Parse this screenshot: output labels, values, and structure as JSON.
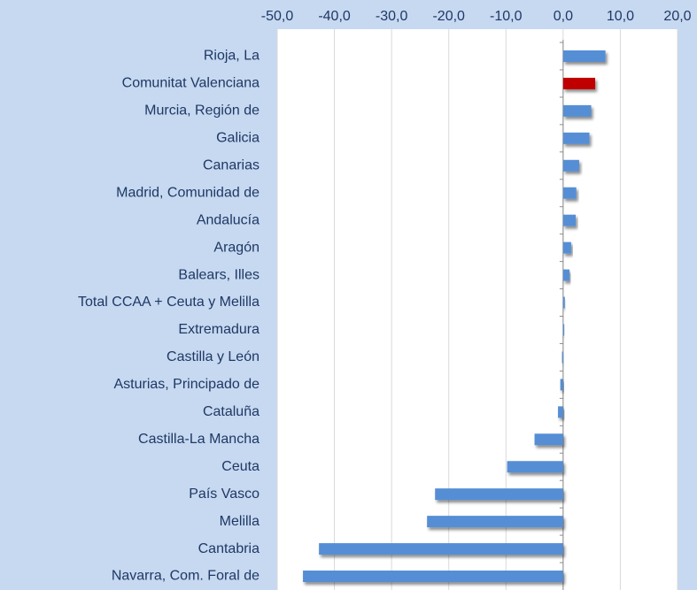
{
  "chart_data": {
    "type": "barh",
    "categories": [
      "Rioja, La",
      "Comunitat Valenciana",
      "Murcia, Región de",
      "Galicia",
      "Canarias",
      "Madrid, Comunidad de ",
      "Andalucía",
      "Aragón",
      "Balears, Illes",
      "Total CCAA + Ceuta y Melilla",
      "Extremadura",
      "Castilla y León",
      "Asturias, Principado de",
      "Cataluña",
      "Castilla-La Mancha",
      "Ceuta",
      "País Vasco",
      "Melilla",
      "Cantabria",
      "Navarra, Com. Foral de"
    ],
    "values": [
      7.4,
      5.6,
      4.9,
      4.6,
      2.8,
      2.3,
      2.2,
      1.4,
      1.1,
      0.3,
      0.2,
      -0.2,
      -0.5,
      -0.9,
      -5.0,
      -9.8,
      -22.4,
      -23.8,
      -42.7,
      -45.5
    ],
    "colors": [
      "#558ed5",
      "#c00000",
      "#558ed5",
      "#558ed5",
      "#558ed5",
      "#558ed5",
      "#558ed5",
      "#558ed5",
      "#558ed5",
      "#558ed5",
      "#558ed5",
      "#558ed5",
      "#558ed5",
      "#558ed5",
      "#558ed5",
      "#558ed5",
      "#558ed5",
      "#558ed5",
      "#558ed5",
      "#558ed5"
    ],
    "xlim": [
      -50,
      20
    ],
    "xticks": [
      {
        "value": -50,
        "label": "-50,0"
      },
      {
        "value": -40,
        "label": "-40,0"
      },
      {
        "value": -30,
        "label": "-30,0"
      },
      {
        "value": -20,
        "label": "-20,0"
      },
      {
        "value": -10,
        "label": "-10,0"
      },
      {
        "value": 0,
        "label": "0,0"
      },
      {
        "value": 10,
        "label": "10,0"
      },
      {
        "value": 20,
        "label": "20,0"
      }
    ],
    "grid": true
  }
}
